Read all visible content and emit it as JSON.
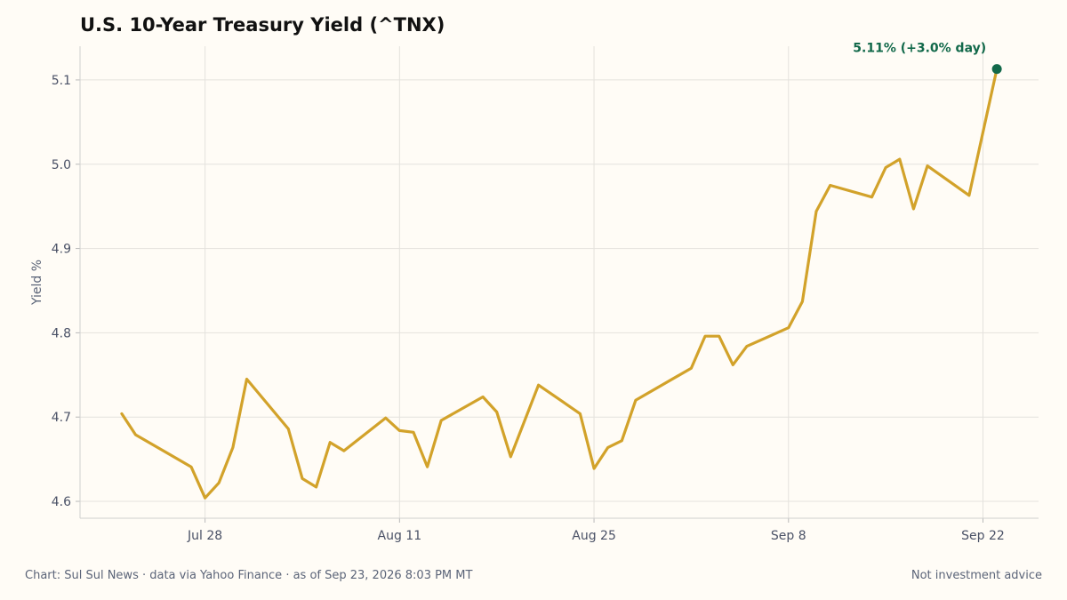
{
  "chart_data": {
    "type": "line",
    "title": "U.S. 10-Year Treasury Yield (^TNX)",
    "ylabel": "Yield %",
    "xlabel": "",
    "ylim": [
      4.58,
      5.14
    ],
    "xlim": [
      "2026-07-19",
      "2026-09-26"
    ],
    "yticks": [
      4.6,
      4.7,
      4.8,
      4.9,
      5.0,
      5.1
    ],
    "ytick_labels": [
      "4.6",
      "4.7",
      "4.8",
      "4.9",
      "5.0",
      "5.1"
    ],
    "xticks": [
      "2026-07-28",
      "2026-08-11",
      "2026-08-25",
      "2026-09-08",
      "2026-09-22"
    ],
    "xtick_labels": [
      "Jul 28",
      "Aug 11",
      "Aug 25",
      "Sep 8",
      "Sep 22"
    ],
    "grid": true,
    "line_color": "#d2a22a",
    "marker_color": "#12694a",
    "series": [
      {
        "x": [
          "2026-07-22",
          "2026-07-23",
          "2026-07-27",
          "2026-07-28",
          "2026-07-29",
          "2026-07-30",
          "2026-07-31",
          "2026-08-03",
          "2026-08-04",
          "2026-08-05",
          "2026-08-06",
          "2026-08-07",
          "2026-08-10",
          "2026-08-11",
          "2026-08-12",
          "2026-08-13",
          "2026-08-14",
          "2026-08-17",
          "2026-08-18",
          "2026-08-19",
          "2026-08-21",
          "2026-08-24",
          "2026-08-25",
          "2026-08-26",
          "2026-08-27",
          "2026-08-28",
          "2026-09-01",
          "2026-09-02",
          "2026-09-03",
          "2026-09-04",
          "2026-09-05",
          "2026-09-08",
          "2026-09-09",
          "2026-09-10",
          "2026-09-11",
          "2026-09-14",
          "2026-09-15",
          "2026-09-16",
          "2026-09-17",
          "2026-09-18",
          "2026-09-21",
          "2026-09-23"
        ],
        "values": [
          4.704,
          4.679,
          4.641,
          4.604,
          4.622,
          4.664,
          4.745,
          4.686,
          4.627,
          4.617,
          4.67,
          4.66,
          4.699,
          4.684,
          4.682,
          4.641,
          4.696,
          4.724,
          4.706,
          4.653,
          4.738,
          4.704,
          4.639,
          4.664,
          4.672,
          4.72,
          4.758,
          4.796,
          4.796,
          4.762,
          4.784,
          4.806,
          4.837,
          4.944,
          4.975,
          4.961,
          4.996,
          5.006,
          4.947,
          4.998,
          4.963,
          5.113
        ]
      }
    ],
    "annotation": "5.11%  (+3.0% day)"
  },
  "footer": {
    "left": "Chart: Sul Sul News · data via Yahoo Finance · as of Sep 23, 2026 8:03 PM MT",
    "right": "Not investment advice"
  }
}
